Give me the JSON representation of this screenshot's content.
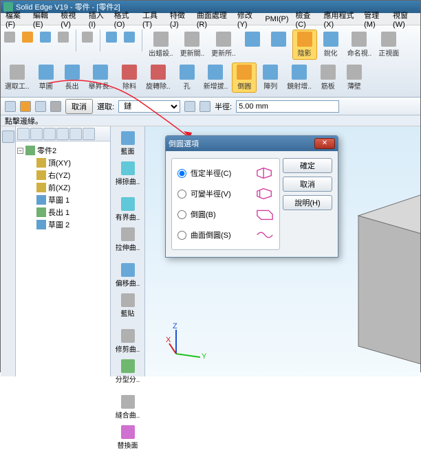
{
  "app": {
    "title": "Solid Edge V19 - 零件 - [零件2]"
  },
  "menu": [
    "檔案(F)",
    "編輯(E)",
    "檢視(V)",
    "插入(I)",
    "格式(O)",
    "工具(T)",
    "特徵(J)",
    "曲面處理(R)",
    "修改(Y)",
    "PMI(P)",
    "檢查(C)",
    "應用程式(X)",
    "管理(M)",
    "視窗(W)"
  ],
  "ribbon1": [
    {
      "lbl": "出蜡設..",
      "c": "ico-gray"
    },
    {
      "lbl": "更新關..",
      "c": "ico-gray"
    },
    {
      "lbl": "更新所..",
      "c": "ico-gray"
    },
    {
      "lbl": "",
      "c": "ico-cube"
    },
    {
      "lbl": "",
      "c": "ico-cube"
    },
    {
      "lbl": "陰影",
      "c": "ico-orange",
      "active": 1
    },
    {
      "lbl": "銳化",
      "c": "ico-cube"
    },
    {
      "lbl": "命名視..",
      "c": "ico-gray"
    },
    {
      "lbl": "正視面",
      "c": "ico-gray"
    }
  ],
  "ribbon2": [
    {
      "lbl": "選取工..",
      "c": "ico-gray"
    },
    {
      "lbl": "草圖",
      "c": "ico-cube"
    },
    {
      "lbl": "長出",
      "c": "ico-cube"
    },
    {
      "lbl": "舉昇長..",
      "c": "ico-cube"
    },
    {
      "lbl": "除料",
      "c": "ico-red"
    },
    {
      "lbl": "旋轉除..",
      "c": "ico-red"
    },
    {
      "lbl": "孔",
      "c": "ico-cube"
    },
    {
      "lbl": "新增拔..",
      "c": "ico-cube"
    },
    {
      "lbl": "倒圓",
      "c": "ico-orange",
      "active": 1
    },
    {
      "lbl": "陣列",
      "c": "ico-cube"
    },
    {
      "lbl": "鏡射增..",
      "c": "ico-cube"
    },
    {
      "lbl": "筋板",
      "c": "ico-gray"
    },
    {
      "lbl": "薄壁",
      "c": "ico-gray"
    }
  ],
  "optbar": {
    "cancel": "取消",
    "sel": "選取:",
    "edge": "鏈",
    "radius": "半徑:",
    "val": "5.00 mm"
  },
  "status": "點擊邊緣。",
  "tree": {
    "root": "零件2",
    "children": [
      {
        "lbl": "頂(XY)",
        "c": "#d0b040"
      },
      {
        "lbl": "右(YZ)",
        "c": "#d0b040"
      },
      {
        "lbl": "前(XZ)",
        "c": "#d0b040"
      },
      {
        "lbl": "草圖 1",
        "c": "#60a0d0"
      },
      {
        "lbl": "長出 1",
        "c": "#70b070"
      },
      {
        "lbl": "草圖 2",
        "c": "#60a0d0"
      }
    ]
  },
  "featcol": [
    {
      "lbl": "藍面",
      "c": "ico-cube"
    },
    {
      "lbl": "掃掠曲..",
      "c": "ico-cyan"
    },
    {
      "lbl": "有界曲..",
      "c": "ico-cyan"
    },
    {
      "lbl": "拉伸曲..",
      "c": "ico-gray"
    },
    {
      "lbl": "偏移曲..",
      "c": "ico-cube"
    },
    {
      "lbl": "藍貼",
      "c": "ico-gray"
    },
    {
      "lbl": "修剪曲..",
      "c": "ico-gray"
    },
    {
      "lbl": "分型分..",
      "c": "ico-green"
    },
    {
      "lbl": "縫合曲..",
      "c": "ico-gray"
    },
    {
      "lbl": "替換面",
      "c": "ico-mag"
    }
  ],
  "dialog": {
    "title": "倒圓選項",
    "opts": [
      {
        "lbl": "恆定半徑(C)",
        "sel": 1
      },
      {
        "lbl": "可變半徑(V)"
      },
      {
        "lbl": "倒圓(B)"
      },
      {
        "lbl": "曲面倒圓(S)"
      }
    ],
    "ok": "確定",
    "cancel": "取消",
    "help": "說明(H)"
  }
}
